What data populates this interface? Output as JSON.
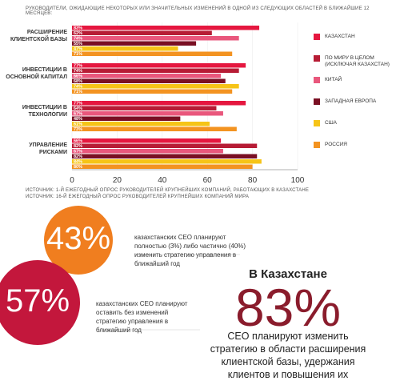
{
  "chart_data": {
    "type": "bar",
    "orientation": "horizontal",
    "title": "РУКОВОДИТЕЛИ, ОЖИДАЮЩИЕ НЕКОТОРЫХ ИЛИ ЗНАЧИТЕЛЬНЫХ ИЗМЕНЕНИЙ В ОДНОЙ ИЗ СЛЕДУЮЩИХ ОБЛАСТЕЙ В БЛИЖАЙШИЕ 12 МЕСЯЦЕВ:",
    "categories": [
      "РАСШИРЕНИЕ КЛИЕНТСКОЙ БАЗЫ",
      "ИНВЕСТИЦИИ В ОСНОВНОЙ КАПИТАЛ",
      "ИНВЕСТИЦИИ В ТЕХНОЛОГИИ",
      "УПРАВЛЕНИЕ РИСКАМИ"
    ],
    "series": [
      {
        "name": "КАЗАХСТАН",
        "color": "#e5173f",
        "values": [
          83,
          77,
          77,
          66
        ],
        "value_labels": [
          "83%",
          "77%",
          "77%",
          "66%"
        ]
      },
      {
        "name": "ПО МИРУ В ЦЕЛОМ (ИСКЛЮЧАЯ КАЗАХСТАН)",
        "color": "#b71c35",
        "values": [
          62,
          74,
          64,
          82
        ],
        "value_labels": [
          "62%",
          "74%",
          "64%",
          "82%"
        ]
      },
      {
        "name": "КИТАЙ",
        "color": "#e9577c",
        "values": [
          74,
          66,
          67,
          67
        ],
        "value_labels": [
          "74%",
          "66%",
          "67%",
          "67%"
        ]
      },
      {
        "name": "ЗАПАДНАЯ ЕВРОПА",
        "color": "#7a0f23",
        "values": [
          55,
          68,
          48,
          82
        ],
        "value_labels": [
          "55%",
          "68%",
          "48%",
          "82%"
        ]
      },
      {
        "name": "США",
        "color": "#f6c417",
        "values": [
          47,
          74,
          61,
          84
        ],
        "value_labels": [
          "47%",
          "74%",
          "61%",
          "84%"
        ]
      },
      {
        "name": "РОССИЯ",
        "color": "#f39321",
        "values": [
          71,
          71,
          73,
          80
        ],
        "value_labels": [
          "71%",
          "71%",
          "73%",
          "80%"
        ]
      }
    ],
    "xlim": [
      0,
      100
    ],
    "xticks": [
      0,
      20,
      40,
      60,
      80,
      100
    ],
    "sources": [
      "ИСТОЧНИК: 1-Й ЕЖЕГОДНЫЙ ОПРОС РУКОВОДИТЕЛЕЙ КРУПНЕЙШИХ КОМПАНИЙ, РАБОТАЮЩИХ В КАЗАХСТАНЕ",
      "ИСТОЧНИК: 16-Й ЕЖЕГОДНЫЙ ОПРОС РУКОВОДИТЕЛЕЙ КРУПНЕЙШИХ КОМПАНИЙ МИРА"
    ]
  },
  "callouts": [
    {
      "number": "43%",
      "text": "казахстанских CEO планируют полностью (3%) либо частично (40%) изменить стратегию управления в ближайший год"
    },
    {
      "number": "57%",
      "text": "казахстанских CEO планируют оставить без изменений стратегию управления в ближайший год"
    }
  ],
  "highlight": {
    "heading": "В Казахстане",
    "number": "83%",
    "text": "CEO планируют изменить стратегию в области расширения клиентской базы, удержания клиентов и повышения их лояльности"
  }
}
